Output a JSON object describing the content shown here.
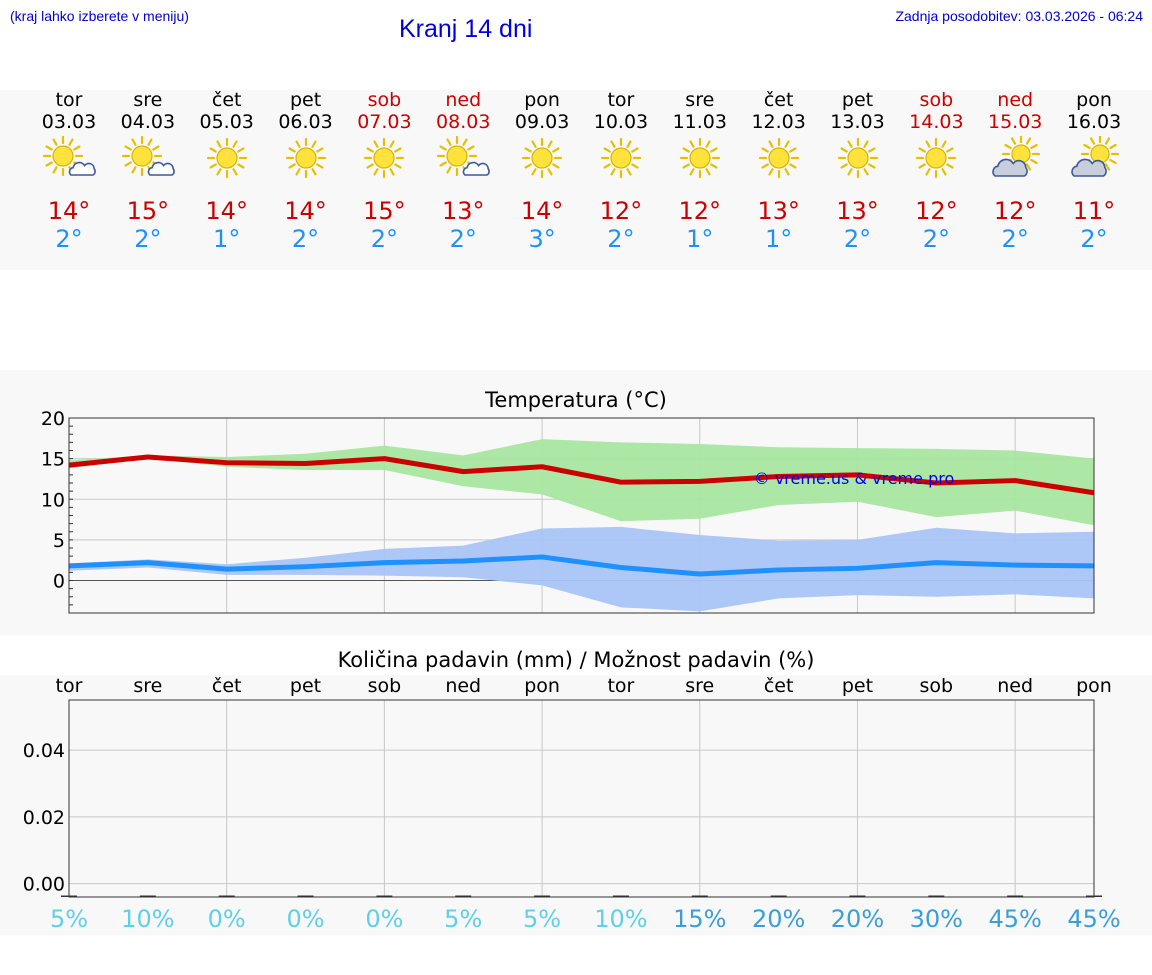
{
  "header": {
    "menu_note": "(kraj lahko izberete v meniju)",
    "title": "Kranj 14 dni",
    "updated": "Zadnja posodobitev: 03.03.2026 - 06:24"
  },
  "colors": {
    "weekday": "#000000",
    "weekend": "#cc0000",
    "tmax": "#cc0000",
    "tmin": "#1e90ff",
    "tmax_band": "#a8e6a0",
    "tmin_band": "#a9c4f5",
    "watermark": "#0000ee"
  },
  "days": [
    {
      "name": "tor",
      "date": "03.03",
      "weekend": false,
      "icon": "sun-cloud-icon",
      "tmax": "14°",
      "tmin": "2°"
    },
    {
      "name": "sre",
      "date": "04.03",
      "weekend": false,
      "icon": "sun-cloud-icon",
      "tmax": "15°",
      "tmin": "2°"
    },
    {
      "name": "čet",
      "date": "05.03",
      "weekend": false,
      "icon": "sun-icon",
      "tmax": "14°",
      "tmin": "1°"
    },
    {
      "name": "pet",
      "date": "06.03",
      "weekend": false,
      "icon": "sun-icon",
      "tmax": "14°",
      "tmin": "2°"
    },
    {
      "name": "sob",
      "date": "07.03",
      "weekend": true,
      "icon": "sun-icon",
      "tmax": "15°",
      "tmin": "2°"
    },
    {
      "name": "ned",
      "date": "08.03",
      "weekend": true,
      "icon": "sun-cloud-icon",
      "tmax": "13°",
      "tmin": "2°"
    },
    {
      "name": "pon",
      "date": "09.03",
      "weekend": false,
      "icon": "sun-icon",
      "tmax": "14°",
      "tmin": "3°"
    },
    {
      "name": "tor",
      "date": "10.03",
      "weekend": false,
      "icon": "sun-icon",
      "tmax": "12°",
      "tmin": "2°"
    },
    {
      "name": "sre",
      "date": "11.03",
      "weekend": false,
      "icon": "sun-icon",
      "tmax": "12°",
      "tmin": "1°"
    },
    {
      "name": "čet",
      "date": "12.03",
      "weekend": false,
      "icon": "sun-icon",
      "tmax": "13°",
      "tmin": "1°"
    },
    {
      "name": "pet",
      "date": "13.03",
      "weekend": false,
      "icon": "sun-icon",
      "tmax": "13°",
      "tmin": "2°"
    },
    {
      "name": "sob",
      "date": "14.03",
      "weekend": true,
      "icon": "sun-icon",
      "tmax": "12°",
      "tmin": "2°"
    },
    {
      "name": "ned",
      "date": "15.03",
      "weekend": true,
      "icon": "cloud-sun-icon",
      "tmax": "12°",
      "tmin": "2°"
    },
    {
      "name": "pon",
      "date": "16.03",
      "weekend": false,
      "icon": "cloud-sun-icon",
      "tmax": "11°",
      "tmin": "2°"
    }
  ],
  "chart_data": [
    {
      "type": "line",
      "title": "Temperatura (°C)",
      "watermark": "© vreme.us & vreme.pro",
      "x": [
        0,
        1,
        2,
        3,
        4,
        5,
        6,
        7,
        8,
        9,
        10,
        11,
        12,
        13
      ],
      "ylim": [
        -4,
        20
      ],
      "yticks": [
        0,
        5,
        10,
        15,
        20
      ],
      "grid": true,
      "series": [
        {
          "name": "tmax",
          "values": [
            14.2,
            15.2,
            14.5,
            14.4,
            15.0,
            13.4,
            14.0,
            12.1,
            12.2,
            12.8,
            13.0,
            12.0,
            12.3,
            10.8
          ],
          "band_high": [
            14.8,
            15.4,
            15.2,
            15.6,
            16.6,
            15.4,
            17.4,
            17.0,
            16.8,
            16.4,
            16.3,
            16.2,
            16.0,
            15.0
          ],
          "band_low": [
            13.8,
            15.0,
            14.0,
            13.6,
            13.6,
            11.6,
            10.6,
            7.3,
            7.6,
            9.3,
            9.7,
            7.8,
            8.6,
            6.8
          ]
        },
        {
          "name": "tmin",
          "values": [
            1.8,
            2.2,
            1.4,
            1.7,
            2.2,
            2.4,
            2.9,
            1.6,
            0.8,
            1.3,
            1.5,
            2.2,
            1.9,
            1.8
          ],
          "band_high": [
            2.1,
            2.6,
            2.0,
            2.8,
            3.9,
            4.3,
            6.4,
            6.6,
            5.6,
            4.9,
            5.0,
            6.5,
            5.8,
            6.0
          ],
          "band_low": [
            1.2,
            1.6,
            0.7,
            0.7,
            0.6,
            0.4,
            -0.6,
            -3.3,
            -3.8,
            -2.2,
            -1.8,
            -2.0,
            -1.7,
            -2.2
          ]
        }
      ]
    },
    {
      "type": "bar",
      "title": "Količina padavin (mm) / Možnost padavin (%)",
      "categories": [
        "tor",
        "sre",
        "čet",
        "pet",
        "sob",
        "ned",
        "pon",
        "tor",
        "sre",
        "čet",
        "pet",
        "sob",
        "ned",
        "pon"
      ],
      "values": [
        0,
        0,
        0,
        0,
        0,
        0,
        0,
        0,
        0,
        0,
        0,
        0,
        0,
        0
      ],
      "ylim": [
        -0.004,
        0.055
      ],
      "yticks": [
        0.0,
        0.02,
        0.04
      ],
      "ytick_labels": [
        "0.00",
        "0.02",
        "0.04"
      ],
      "chance": [
        "5%",
        "10%",
        "0%",
        "0%",
        "0%",
        "5%",
        "5%",
        "10%",
        "15%",
        "20%",
        "20%",
        "30%",
        "45%",
        "45%"
      ],
      "chance_values": [
        5,
        10,
        0,
        0,
        0,
        5,
        5,
        10,
        15,
        20,
        20,
        30,
        45,
        45
      ]
    }
  ]
}
